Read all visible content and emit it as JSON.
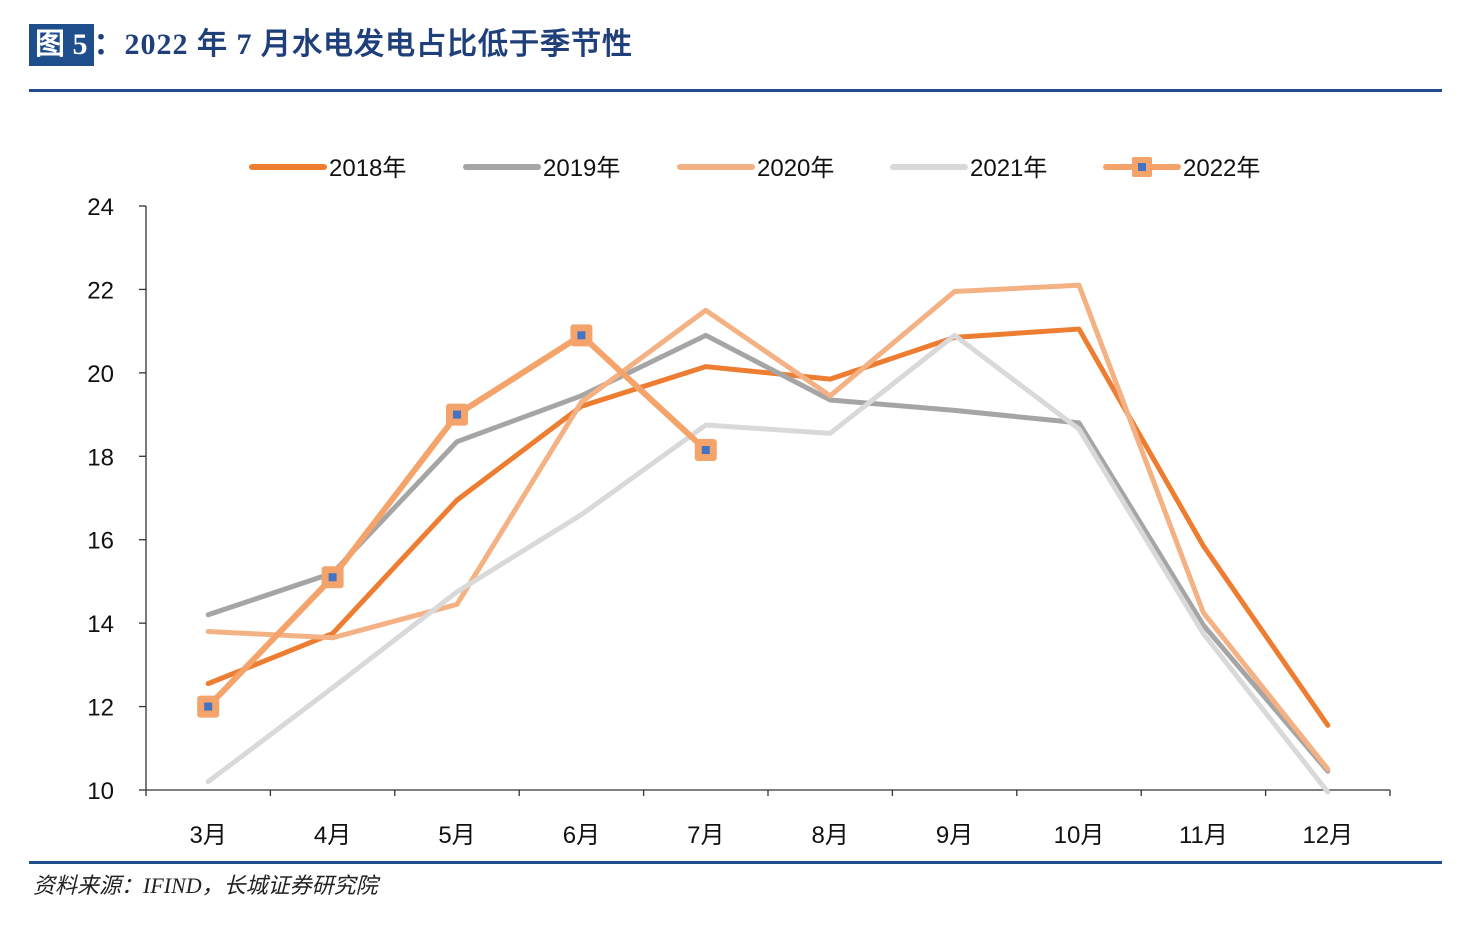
{
  "header": {
    "badge": "图 5",
    "title": "：2022 年 7 月水电发电占比低于季节性"
  },
  "source": "资料来源：IFIND，长城证券研究院",
  "chart_data": {
    "type": "line",
    "categories": [
      "3月",
      "4月",
      "5月",
      "6月",
      "7月",
      "8月",
      "9月",
      "10月",
      "11月",
      "12月"
    ],
    "ylim": [
      10,
      24
    ],
    "yticks": [
      10,
      12,
      14,
      16,
      18,
      20,
      22,
      24
    ],
    "ytick_labels": [
      "10",
      "12",
      "14",
      "16",
      "18",
      "20",
      "22",
      "24"
    ],
    "grid": false,
    "legend_position": "top",
    "series": [
      {
        "name": "2018年",
        "color": "#ed7d31",
        "marker": false,
        "values": [
          12.55,
          13.75,
          16.95,
          19.2,
          20.15,
          19.85,
          20.85,
          21.05,
          15.85,
          11.55
        ]
      },
      {
        "name": "2019年",
        "color": "#a5a5a5",
        "marker": false,
        "values": [
          14.2,
          15.2,
          18.35,
          19.45,
          20.9,
          19.35,
          19.1,
          18.8,
          13.95,
          10.45
        ]
      },
      {
        "name": "2020年",
        "color": "#f4b183",
        "marker": false,
        "values": [
          13.8,
          13.65,
          14.45,
          19.3,
          21.5,
          19.45,
          21.95,
          22.1,
          14.25,
          10.5
        ]
      },
      {
        "name": "2021年",
        "color": "#d9d9d9",
        "marker": false,
        "values": [
          10.2,
          12.45,
          14.75,
          16.6,
          18.75,
          18.55,
          20.9,
          18.65,
          13.75,
          9.95
        ]
      },
      {
        "name": "2022年",
        "color": "#f4a46a",
        "marker": true,
        "marker_center_color": "#4472c4",
        "values": [
          12.0,
          15.1,
          19.0,
          20.9,
          18.15,
          null,
          null,
          null,
          null,
          null
        ]
      }
    ]
  }
}
